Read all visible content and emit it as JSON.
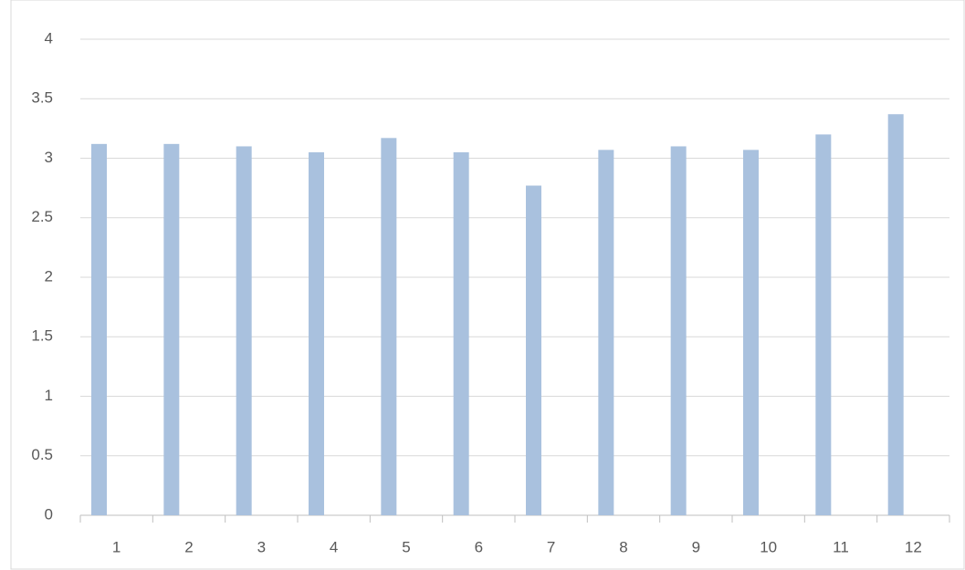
{
  "chart_data": {
    "type": "bar",
    "categories": [
      "1",
      "2",
      "3",
      "4",
      "5",
      "6",
      "7",
      "8",
      "9",
      "10",
      "11",
      "12"
    ],
    "values": [
      3.12,
      3.12,
      3.1,
      3.05,
      3.17,
      3.05,
      2.77,
      3.07,
      3.1,
      3.07,
      3.2,
      3.37
    ],
    "color": "#a9c1de",
    "ylim": [
      0,
      4
    ],
    "yticks": [
      0,
      0.5,
      1,
      1.5,
      2,
      2.5,
      3,
      3.5,
      4
    ],
    "grid": true
  }
}
